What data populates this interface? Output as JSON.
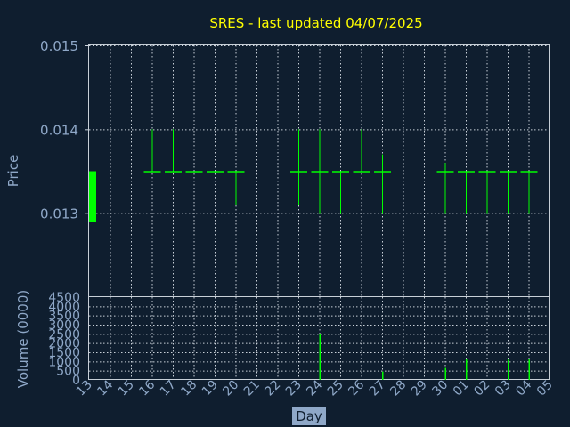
{
  "chart_data": [
    {
      "type": "ohlc",
      "title": "SRES - last updated 04/07/2025",
      "ylabel": "Price",
      "ylim": [
        0.012,
        0.015
      ],
      "yticks": [
        "0.015",
        "0.014",
        "0.013"
      ],
      "grid": true,
      "colors": {
        "up": "#00ff00",
        "background": "#0f1e2f",
        "title": "#ffff00",
        "text": "#8fa8c8"
      },
      "x": [
        "13",
        "14",
        "15",
        "16",
        "17",
        "18",
        "19",
        "20",
        "21",
        "22",
        "23",
        "24",
        "25",
        "26",
        "27",
        "28",
        "29",
        "30",
        "01",
        "02",
        "03",
        "04",
        "05"
      ],
      "bars": [
        {
          "day": "13",
          "open": 0.0129,
          "high": 0.0135,
          "low": 0.0129,
          "close": 0.0135
        },
        {
          "day": "16",
          "open": 0.0135,
          "high": 0.014,
          "low": 0.0135,
          "close": 0.0135
        },
        {
          "day": "17",
          "open": 0.0135,
          "high": 0.014,
          "low": 0.0135,
          "close": 0.0135
        },
        {
          "day": "18",
          "open": 0.0135,
          "high": 0.0135,
          "low": 0.0135,
          "close": 0.0135
        },
        {
          "day": "19",
          "open": 0.0135,
          "high": 0.0135,
          "low": 0.0135,
          "close": 0.0135
        },
        {
          "day": "20",
          "open": 0.0135,
          "high": 0.0135,
          "low": 0.0131,
          "close": 0.0135
        },
        {
          "day": "23",
          "open": 0.0135,
          "high": 0.014,
          "low": 0.0131,
          "close": 0.0135
        },
        {
          "day": "24",
          "open": 0.0135,
          "high": 0.014,
          "low": 0.013,
          "close": 0.0135
        },
        {
          "day": "25",
          "open": 0.0135,
          "high": 0.0135,
          "low": 0.013,
          "close": 0.0135
        },
        {
          "day": "26",
          "open": 0.0135,
          "high": 0.014,
          "low": 0.0135,
          "close": 0.0135
        },
        {
          "day": "27",
          "open": 0.0135,
          "high": 0.0137,
          "low": 0.013,
          "close": 0.0135
        },
        {
          "day": "30",
          "open": 0.0135,
          "high": 0.0136,
          "low": 0.013,
          "close": 0.0135
        },
        {
          "day": "01",
          "open": 0.0135,
          "high": 0.0135,
          "low": 0.013,
          "close": 0.0135
        },
        {
          "day": "02",
          "open": 0.0135,
          "high": 0.0135,
          "low": 0.013,
          "close": 0.0135
        },
        {
          "day": "03",
          "open": 0.0135,
          "high": 0.0135,
          "low": 0.013,
          "close": 0.0135
        },
        {
          "day": "04",
          "open": 0.0135,
          "high": 0.0135,
          "low": 0.013,
          "close": 0.0135
        }
      ]
    },
    {
      "type": "bar",
      "ylabel": "Volume (0000)",
      "xlabel": "Day",
      "ylim": [
        0,
        4500
      ],
      "yticks": [
        "4500",
        "4000",
        "3500",
        "3000",
        "2500",
        "2000",
        "1500",
        "1000",
        "500",
        "0"
      ],
      "grid": true,
      "bar_color": "#00ff00",
      "categories": [
        "24",
        "27",
        "30",
        "01",
        "03",
        "04"
      ],
      "values": [
        2500,
        450,
        650,
        1150,
        1100,
        1150
      ]
    }
  ]
}
